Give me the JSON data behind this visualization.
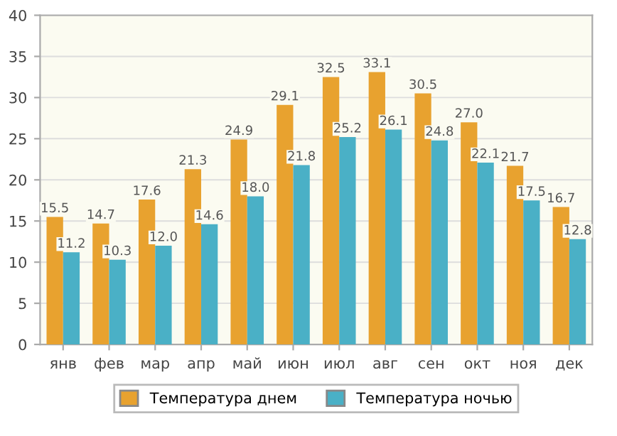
{
  "chart_data": {
    "type": "bar",
    "categories": [
      "янв",
      "фев",
      "мар",
      "апр",
      "май",
      "июн",
      "июл",
      "авг",
      "сен",
      "окт",
      "ноя",
      "дек"
    ],
    "series": [
      {
        "name": "Температура днем",
        "color": "#e8a22f",
        "values": [
          15.5,
          14.7,
          17.6,
          21.3,
          24.9,
          29.1,
          32.5,
          33.1,
          30.5,
          27.0,
          21.7,
          16.7
        ],
        "value_labels": [
          "15.5",
          "14.7",
          "17.6",
          "21.3",
          "24.9",
          "29.1",
          "32.5",
          "33.1",
          "30.5",
          "27.0",
          "21.7",
          "16.7"
        ]
      },
      {
        "name": "Температура ночью",
        "color": "#4ab0c6",
        "values": [
          11.2,
          10.3,
          12.0,
          14.6,
          18.0,
          21.8,
          25.2,
          26.1,
          24.8,
          22.1,
          17.5,
          12.8
        ],
        "value_labels": [
          "11.2",
          "10.3",
          "12.0",
          "14.6",
          "18.0",
          "21.8",
          "25.2",
          "26.1",
          "24.8",
          "22.1",
          "17.5",
          "12.8"
        ]
      }
    ],
    "ylim": [
      0,
      40
    ],
    "yticks": [
      0,
      5,
      10,
      15,
      20,
      25,
      30,
      35,
      40
    ],
    "grid": "y",
    "legend": "bottom"
  }
}
